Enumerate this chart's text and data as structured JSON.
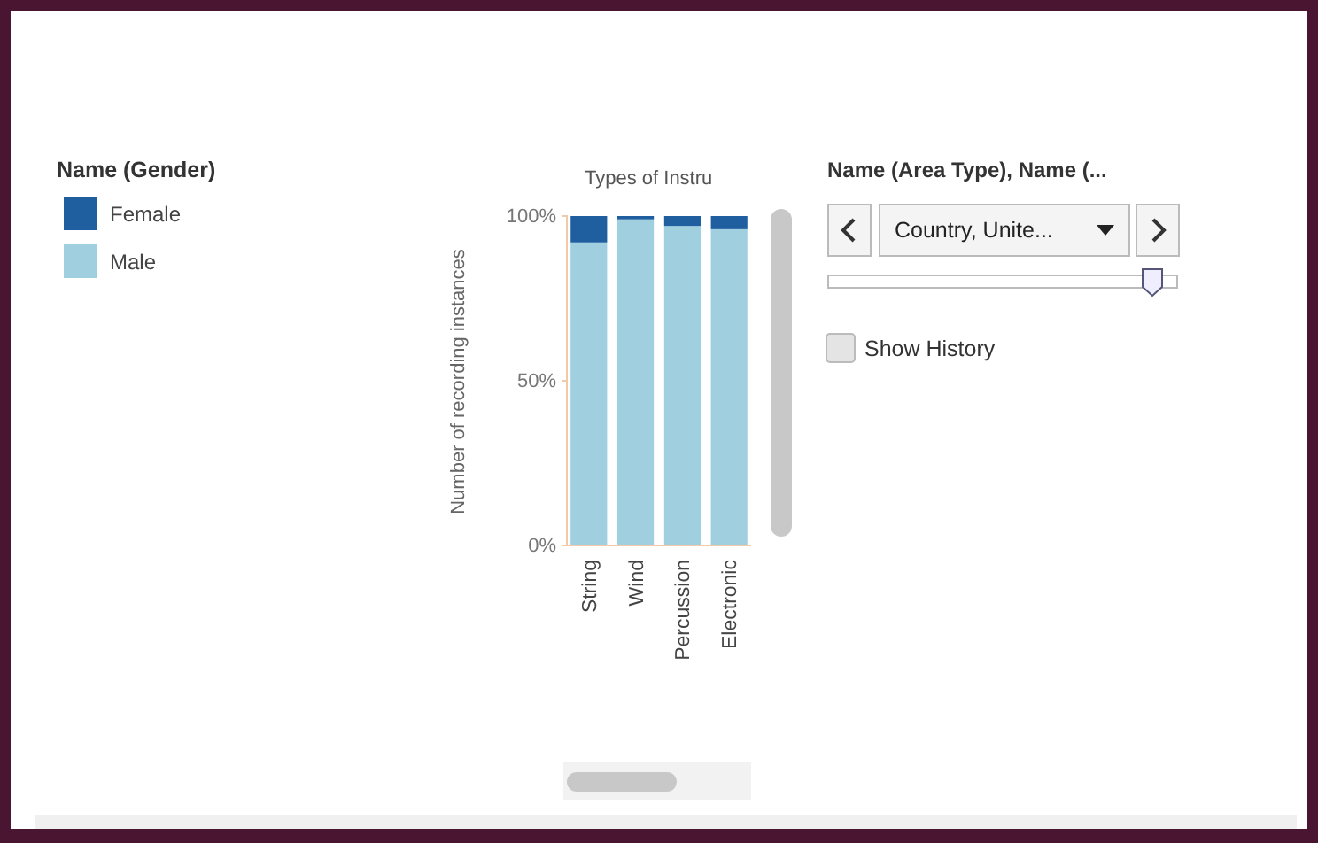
{
  "chart_data": {
    "type": "bar",
    "title": "Types of Instru",
    "ylabel": "Number of recording instances",
    "legend_title": "Name (Gender)",
    "categories": [
      "String",
      "Wind",
      "Percussion",
      "Electronic"
    ],
    "series": [
      {
        "name": "Male",
        "color": "#a0d0e0",
        "values": [
          92,
          99,
          97,
          96
        ]
      },
      {
        "name": "Female",
        "color": "#1f5fa0",
        "values": [
          8,
          1,
          3,
          4
        ]
      }
    ],
    "stacked": true,
    "ylim": [
      0,
      100
    ],
    "yticks": [
      {
        "value": 0,
        "label": "0%"
      },
      {
        "value": 50,
        "label": "50%"
      },
      {
        "value": 100,
        "label": "100%"
      }
    ],
    "legend": "left",
    "grid": false,
    "annotations": [
      "Name (Area Type), Name (...",
      "Country, Unite...",
      "Show History"
    ]
  }
}
